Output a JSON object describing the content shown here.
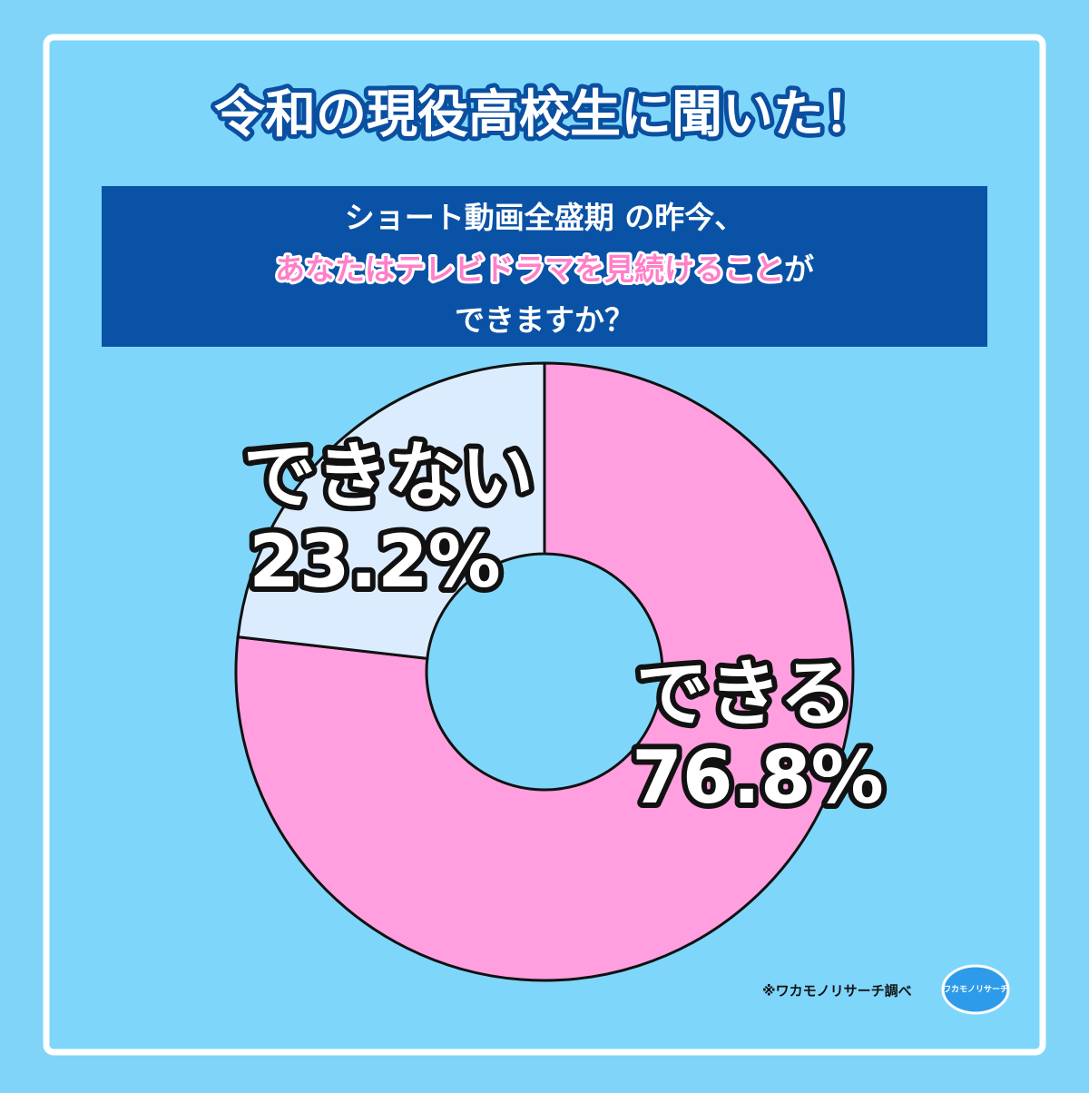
{
  "chart_data": {
    "type": "donut",
    "title": "令和の現役高校生に聞いた！",
    "question": [
      [
        {
          "text": "ショート動画全盛期 の昨今、",
          "color": "#ffffff"
        }
      ],
      [
        {
          "text": "あなたはテレビドラマを見続けること",
          "color": "#ff7fc8"
        },
        {
          "text": "が",
          "color": "#ffffff"
        }
      ],
      [
        {
          "text": "できますか？",
          "color": "#ffffff"
        }
      ]
    ],
    "categories": [
      "できる",
      "できない"
    ],
    "values": [
      76.8,
      23.2
    ],
    "value_labels": [
      "76.8%",
      "23.2%"
    ],
    "colors": [
      "#ff9fe0",
      "#dcecff"
    ],
    "source": "※ワカモノリサーチ調べ",
    "logo": "ワカモノリサーチ"
  }
}
